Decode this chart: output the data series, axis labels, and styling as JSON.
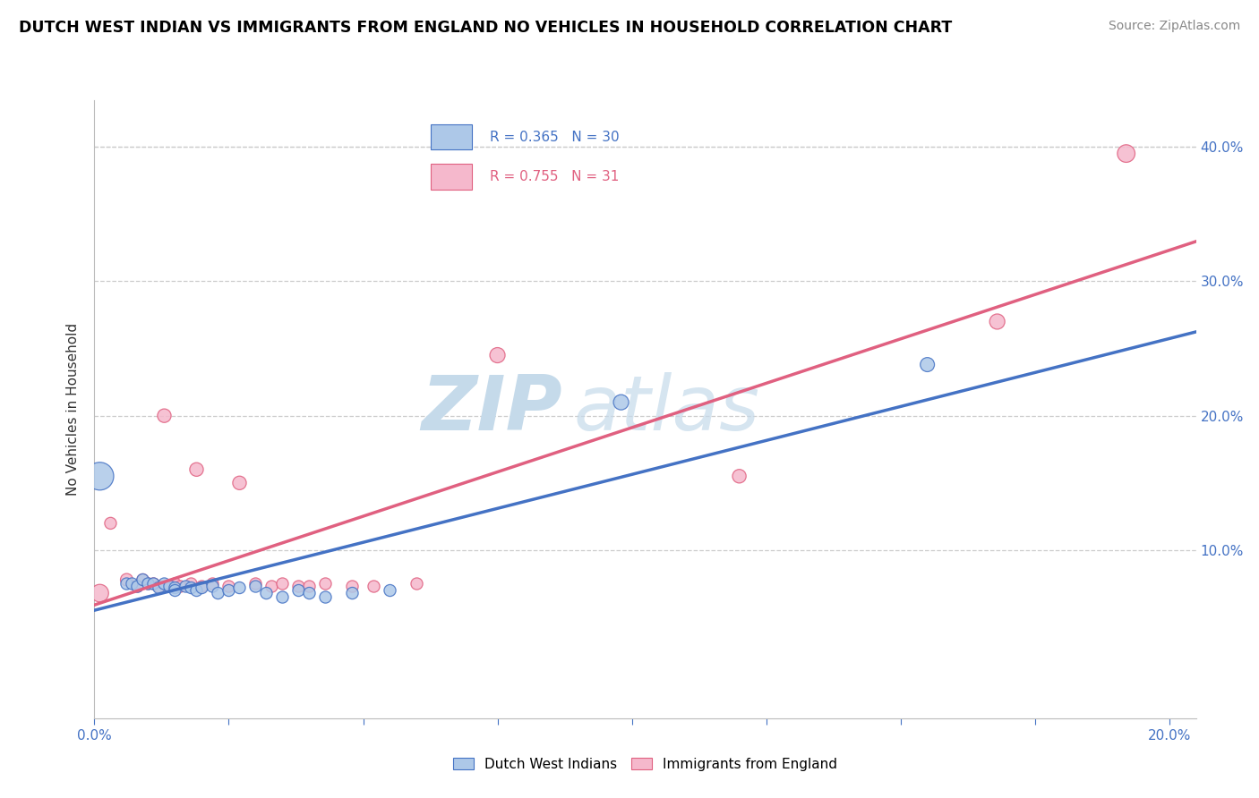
{
  "title": "DUTCH WEST INDIAN VS IMMIGRANTS FROM ENGLAND NO VEHICLES IN HOUSEHOLD CORRELATION CHART",
  "source": "Source: ZipAtlas.com",
  "ylabel": "No Vehicles in Household",
  "xlim": [
    0.0,
    0.205
  ],
  "ylim": [
    -0.025,
    0.435
  ],
  "blue_R": "R = 0.365",
  "blue_N": "N = 30",
  "pink_R": "R = 0.755",
  "pink_N": "N = 31",
  "blue_color": "#adc8e8",
  "pink_color": "#f5b8cc",
  "blue_line_color": "#4472c4",
  "pink_line_color": "#e06080",
  "legend_blue_label": "Dutch West Indians",
  "legend_pink_label": "Immigrants from England",
  "watermark_zip": "ZIP",
  "watermark_atlas": "atlas",
  "blue_points_x": [
    0.001,
    0.006,
    0.007,
    0.008,
    0.009,
    0.01,
    0.011,
    0.012,
    0.013,
    0.014,
    0.015,
    0.015,
    0.017,
    0.018,
    0.019,
    0.02,
    0.022,
    0.023,
    0.025,
    0.027,
    0.03,
    0.032,
    0.035,
    0.038,
    0.04,
    0.043,
    0.048,
    0.055,
    0.098,
    0.155
  ],
  "blue_points_y": [
    0.155,
    0.075,
    0.075,
    0.073,
    0.078,
    0.075,
    0.075,
    0.072,
    0.075,
    0.073,
    0.072,
    0.07,
    0.073,
    0.072,
    0.07,
    0.072,
    0.073,
    0.068,
    0.07,
    0.072,
    0.073,
    0.068,
    0.065,
    0.07,
    0.068,
    0.065,
    0.068,
    0.07,
    0.21,
    0.238
  ],
  "blue_sizes": [
    500,
    90,
    90,
    90,
    90,
    90,
    90,
    90,
    90,
    90,
    90,
    90,
    90,
    90,
    90,
    90,
    90,
    90,
    90,
    90,
    90,
    90,
    90,
    90,
    90,
    90,
    90,
    90,
    150,
    130
  ],
  "pink_points_x": [
    0.001,
    0.003,
    0.006,
    0.008,
    0.009,
    0.01,
    0.011,
    0.012,
    0.013,
    0.014,
    0.015,
    0.016,
    0.018,
    0.019,
    0.02,
    0.022,
    0.025,
    0.027,
    0.03,
    0.033,
    0.035,
    0.038,
    0.04,
    0.043,
    0.048,
    0.052,
    0.06,
    0.075,
    0.12,
    0.168,
    0.192
  ],
  "pink_points_y": [
    0.068,
    0.12,
    0.078,
    0.073,
    0.078,
    0.075,
    0.075,
    0.073,
    0.2,
    0.073,
    0.075,
    0.073,
    0.075,
    0.16,
    0.073,
    0.075,
    0.073,
    0.15,
    0.075,
    0.073,
    0.075,
    0.073,
    0.073,
    0.075,
    0.073,
    0.073,
    0.075,
    0.245,
    0.155,
    0.27,
    0.395
  ],
  "pink_sizes": [
    200,
    90,
    100,
    90,
    90,
    90,
    90,
    90,
    120,
    90,
    90,
    90,
    90,
    120,
    90,
    90,
    90,
    120,
    90,
    90,
    90,
    90,
    90,
    90,
    90,
    90,
    90,
    150,
    120,
    150,
    200
  ]
}
